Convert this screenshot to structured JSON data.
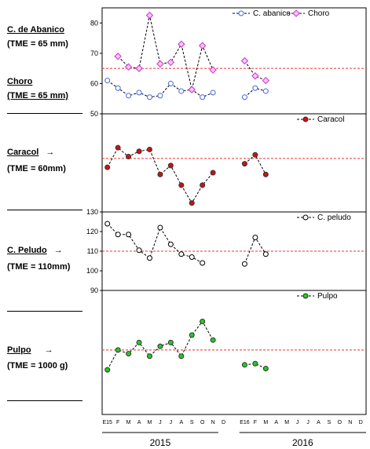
{
  "labels": {
    "abanico_name": "C. de Abanico",
    "abanico_tme": "(TME = 65 mm)",
    "choro_name": "Choro",
    "choro_tme": "(TME = 65 mm)",
    "caracol_name": "Caracol",
    "caracol_arrow": "→",
    "caracol_tme": "(TME = 60mm)",
    "peludo_name": "C. Peludo",
    "peludo_arrow": "→",
    "peludo_tme": "(TME = 110mm)",
    "pulpo_name": "Pulpo",
    "pulpo_arrow": "→",
    "pulpo_tme": "(TME = 1000 g)"
  },
  "chart_data": {
    "type": "line",
    "x_labels": [
      "E15",
      "F",
      "M",
      "A",
      "M",
      "J",
      "J",
      "A",
      "S",
      "O",
      "N",
      "D",
      "",
      "E16",
      "F",
      "M",
      "A",
      "M",
      "J",
      "J",
      "A",
      "S",
      "O",
      "N",
      "D"
    ],
    "years": [
      {
        "label": "2015"
      },
      {
        "label": "2016"
      }
    ],
    "colors": {
      "abanico": "#4466dd",
      "choro": "#cc33cc",
      "caracol": "#d01010",
      "peludo": "#000000",
      "pulpo": "#22cc22",
      "ref": "#ee3333"
    },
    "panels": [
      {
        "id": "abanico-choro",
        "ylim": [
          50,
          85
        ],
        "yticks": [
          "50",
          "60",
          "70",
          "80"
        ],
        "ref_line": 65,
        "series": [
          {
            "name": "C. abanico",
            "color_key": "abanico",
            "marker": "circle",
            "values": [
              61,
              58.5,
              56,
              57,
              55.5,
              56,
              60,
              57.5,
              58,
              55.5,
              57,
              null,
              null,
              55.5,
              58.5,
              57.5,
              null,
              null,
              null,
              null,
              null,
              null,
              null,
              null,
              null
            ]
          },
          {
            "name": "Choro",
            "color_key": "choro",
            "marker": "diamond",
            "values": [
              null,
              69,
              65.5,
              65,
              82.5,
              66.5,
              67,
              73,
              58,
              72.5,
              64.5,
              null,
              null,
              67.5,
              62.5,
              61,
              null,
              null,
              null,
              null,
              null,
              null,
              null,
              null,
              null
            ]
          }
        ]
      },
      {
        "id": "caracol",
        "ylim": [
          40,
          95
        ],
        "yticks": [],
        "ref_line": 70,
        "series": [
          {
            "name": "Caracol",
            "color_key": "caracol",
            "marker": "circle",
            "values": [
              65,
              76,
              71,
              74,
              75,
              61,
              66,
              55,
              45,
              55,
              62,
              null,
              null,
              67,
              72,
              61,
              null,
              null,
              null,
              null,
              null,
              null,
              null,
              null,
              null
            ]
          }
        ]
      },
      {
        "id": "peludo",
        "ylim": [
          90,
          130
        ],
        "yticks": [
          "90",
          "100",
          "110",
          "120",
          "130"
        ],
        "ref_line": 110,
        "series": [
          {
            "name": "C. peludo",
            "color_key": "peludo",
            "marker": "circle",
            "values": [
              124,
              118.5,
              118.5,
              110.5,
              106.5,
              122,
              113.5,
              108.5,
              107,
              104,
              null,
              null,
              null,
              103.5,
              117,
              108.5,
              null,
              null,
              null,
              null,
              null,
              null,
              null,
              null,
              null
            ]
          }
        ]
      },
      {
        "id": "pulpo",
        "ylim": [
          0,
          100
        ],
        "yticks": [],
        "ref_line": 52,
        "series": [
          {
            "name": "Pulpo",
            "color_key": "pulpo",
            "marker": "circle",
            "values": [
              36,
              52,
              49,
              58,
              47,
              55,
              58,
              47,
              64,
              75,
              60,
              null,
              null,
              40,
              41,
              37,
              null,
              null,
              null,
              null,
              null,
              null,
              null,
              null,
              null
            ]
          }
        ]
      }
    ]
  }
}
